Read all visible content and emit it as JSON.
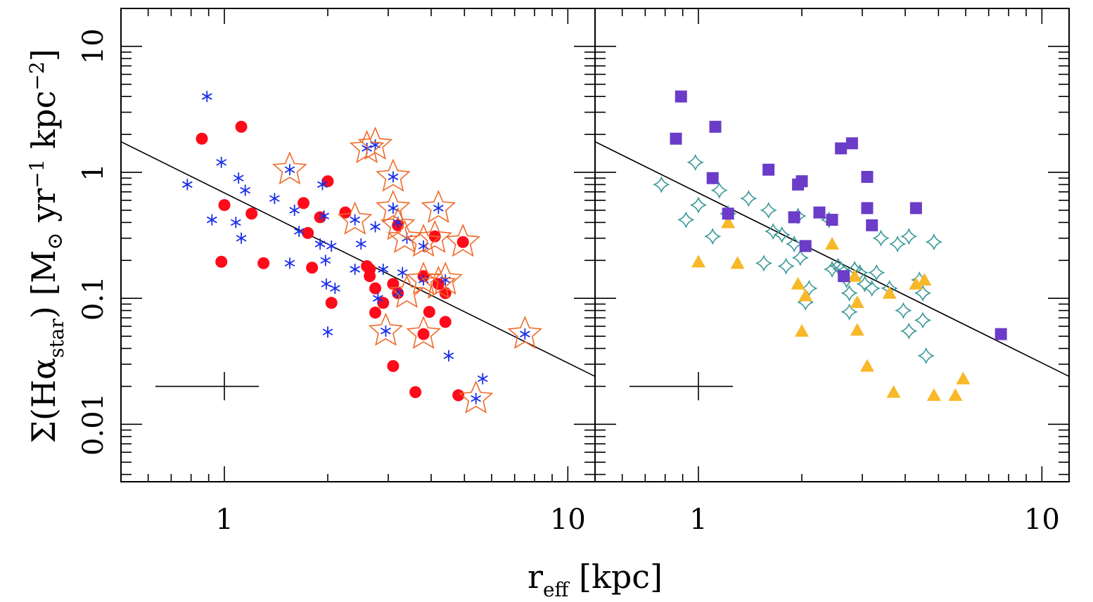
{
  "chart_data": {
    "type": "scatter",
    "xscale": "log",
    "yscale": "log",
    "xlim": [
      0.5,
      12
    ],
    "ylim": [
      0.0035,
      20
    ],
    "xlabel": {
      "main": "r",
      "sub": "eff",
      "rest": "[kpc]"
    },
    "ylabel": {
      "pre": "Σ(Hα",
      "sub": "star",
      "mid": ") [M",
      "sun": "⊙",
      "rest": " yr",
      "exp1": "−1",
      "mid2": " kpc",
      "exp2": "−2",
      "end": "]"
    },
    "xticks": [
      {
        "value": 1,
        "label": "1"
      },
      {
        "value": 10,
        "label": "10"
      }
    ],
    "yticks": [
      {
        "value": 0.01,
        "label": "0.01"
      },
      {
        "value": 0.1,
        "label": "0.1"
      },
      {
        "value": 1,
        "label": "1"
      },
      {
        "value": 10,
        "label": "10"
      }
    ],
    "fit_line": {
      "x": [
        0.5,
        12
      ],
      "y": [
        1.75,
        0.024
      ]
    },
    "error_bar": {
      "x": 1.0,
      "y": 0.02,
      "x_range": [
        0.63,
        1.26
      ],
      "y_range": [
        0.0155,
        0.026
      ]
    },
    "colors": {
      "left_stars": "#1a2ee8",
      "left_dots": "#ff0a1a",
      "left_rings": "#f06a2a",
      "right_squares": "#6a3cc8",
      "right_triangles": "#f8b828",
      "right_sparkles": "#3a9898",
      "line": "#000000"
    },
    "panels": [
      {
        "name": "left",
        "series": [
          {
            "marker": "asterisk",
            "points": [
              [
                0.89,
                4.0
              ],
              [
                0.78,
                0.8
              ],
              [
                0.98,
                1.2
              ],
              [
                1.1,
                0.9
              ],
              [
                1.15,
                0.72
              ],
              [
                0.92,
                0.42
              ],
              [
                1.08,
                0.4
              ],
              [
                1.4,
                0.62
              ],
              [
                1.12,
                0.3
              ],
              [
                1.55,
                0.19
              ],
              [
                1.6,
                0.5
              ],
              [
                1.65,
                0.34
              ],
              [
                1.9,
                0.27
              ],
              [
                1.93,
                0.8
              ],
              [
                1.95,
                0.45
              ],
              [
                1.98,
                0.13
              ],
              [
                2.05,
                0.26
              ],
              [
                1.97,
                0.2
              ],
              [
                2.1,
                0.12
              ],
              [
                2.0,
                0.054
              ],
              [
                2.4,
                0.42
              ],
              [
                2.5,
                0.27
              ],
              [
                2.4,
                0.17
              ],
              [
                2.6,
                1.55
              ],
              [
                2.75,
                1.65
              ],
              [
                2.75,
                0.37
              ],
              [
                2.8,
                0.1
              ],
              [
                2.9,
                0.17
              ],
              [
                3.1,
                0.92
              ],
              [
                3.1,
                0.52
              ],
              [
                3.2,
                0.4
              ],
              [
                3.3,
                0.16
              ],
              [
                3.4,
                0.3
              ],
              [
                3.8,
                0.26
              ],
              [
                3.8,
                0.14
              ],
              [
                4.2,
                0.52
              ],
              [
                4.4,
                0.14
              ],
              [
                4.5,
                0.035
              ],
              [
                5.4,
                0.016
              ],
              [
                5.65,
                0.023
              ],
              [
                7.5,
                0.052
              ],
              [
                2.95,
                0.055
              ],
              [
                1.55,
                1.05
              ],
              [
                3.2,
                0.11
              ]
            ]
          },
          {
            "marker": "dot",
            "points": [
              [
                0.86,
                1.85
              ],
              [
                1.12,
                2.3
              ],
              [
                1.0,
                0.55
              ],
              [
                1.2,
                0.47
              ],
              [
                0.98,
                0.195
              ],
              [
                1.3,
                0.19
              ],
              [
                1.7,
                0.57
              ],
              [
                1.75,
                0.33
              ],
              [
                1.8,
                0.175
              ],
              [
                1.9,
                0.44
              ],
              [
                2.0,
                0.85
              ],
              [
                2.05,
                0.092
              ],
              [
                2.25,
                0.48
              ],
              [
                2.6,
                0.18
              ],
              [
                2.65,
                0.17
              ],
              [
                2.65,
                0.15
              ],
              [
                2.75,
                0.12
              ],
              [
                2.75,
                0.077
              ],
              [
                2.9,
                0.092
              ],
              [
                3.1,
                0.13
              ],
              [
                3.2,
                0.11
              ],
              [
                3.2,
                0.38
              ],
              [
                3.1,
                0.029
              ],
              [
                3.6,
                0.018
              ],
              [
                3.8,
                0.15
              ],
              [
                3.8,
                0.052
              ],
              [
                3.95,
                0.078
              ],
              [
                4.1,
                0.31
              ],
              [
                4.2,
                0.13
              ],
              [
                4.4,
                0.11
              ],
              [
                4.4,
                0.065
              ],
              [
                4.8,
                0.017
              ],
              [
                4.95,
                0.28
              ]
            ]
          },
          {
            "marker": "ring-star",
            "points": [
              [
                1.55,
                1.05
              ],
              [
                2.4,
                0.42
              ],
              [
                2.6,
                1.55
              ],
              [
                2.75,
                1.65
              ],
              [
                3.1,
                0.92
              ],
              [
                3.1,
                0.52
              ],
              [
                3.2,
                0.38
              ],
              [
                3.35,
                0.3
              ],
              [
                2.95,
                0.055
              ],
              [
                3.4,
                0.11
              ],
              [
                3.8,
                0.28
              ],
              [
                3.8,
                0.14
              ],
              [
                3.8,
                0.052
              ],
              [
                4.1,
                0.3
              ],
              [
                4.2,
                0.52
              ],
              [
                4.2,
                0.13
              ],
              [
                4.4,
                0.14
              ],
              [
                4.95,
                0.28
              ],
              [
                5.4,
                0.016
              ],
              [
                7.5,
                0.052
              ]
            ]
          }
        ]
      },
      {
        "name": "right",
        "series": [
          {
            "marker": "square",
            "points": [
              [
                0.89,
                4.0
              ],
              [
                0.86,
                1.85
              ],
              [
                1.12,
                2.3
              ],
              [
                1.1,
                0.9
              ],
              [
                1.6,
                1.05
              ],
              [
                1.95,
                0.8
              ],
              [
                2.0,
                0.85
              ],
              [
                1.9,
                0.44
              ],
              [
                2.05,
                0.26
              ],
              [
                2.25,
                0.48
              ],
              [
                2.45,
                0.42
              ],
              [
                2.6,
                1.55
              ],
              [
                2.8,
                1.7
              ],
              [
                3.1,
                0.92
              ],
              [
                3.1,
                0.52
              ],
              [
                3.2,
                0.38
              ],
              [
                4.3,
                0.52
              ],
              [
                7.6,
                0.052
              ],
              [
                1.22,
                0.47
              ],
              [
                2.65,
                0.15
              ]
            ]
          },
          {
            "marker": "triangle",
            "points": [
              [
                1.22,
                0.4
              ],
              [
                1.0,
                0.195
              ],
              [
                1.3,
                0.19
              ],
              [
                1.95,
                0.13
              ],
              [
                2.05,
                0.105
              ],
              [
                2.0,
                0.055
              ],
              [
                2.45,
                0.27
              ],
              [
                2.85,
                0.15
              ],
              [
                2.9,
                0.093
              ],
              [
                2.9,
                0.056
              ],
              [
                3.1,
                0.029
              ],
              [
                3.6,
                0.11
              ],
              [
                3.7,
                0.018
              ],
              [
                4.3,
                0.13
              ],
              [
                4.55,
                0.14
              ],
              [
                4.85,
                0.017
              ],
              [
                5.6,
                0.017
              ],
              [
                5.9,
                0.023
              ]
            ]
          },
          {
            "marker": "sparkle",
            "points": [
              [
                0.78,
                0.8
              ],
              [
                0.98,
                1.2
              ],
              [
                1.0,
                0.55
              ],
              [
                0.92,
                0.42
              ],
              [
                1.15,
                0.72
              ],
              [
                1.1,
                0.31
              ],
              [
                1.22,
                0.47
              ],
              [
                1.4,
                0.62
              ],
              [
                1.55,
                0.19
              ],
              [
                1.6,
                0.5
              ],
              [
                1.65,
                0.34
              ],
              [
                1.75,
                0.32
              ],
              [
                1.8,
                0.18
              ],
              [
                1.9,
                0.27
              ],
              [
                1.95,
                0.45
              ],
              [
                1.98,
                0.21
              ],
              [
                2.05,
                0.093
              ],
              [
                2.1,
                0.12
              ],
              [
                2.4,
                0.42
              ],
              [
                2.45,
                0.17
              ],
              [
                2.55,
                0.18
              ],
              [
                2.6,
                0.17
              ],
              [
                2.7,
                0.14
              ],
              [
                2.75,
                0.11
              ],
              [
                2.75,
                0.078
              ],
              [
                2.85,
                0.17
              ],
              [
                2.95,
                0.16
              ],
              [
                3.05,
                0.13
              ],
              [
                3.2,
                0.12
              ],
              [
                3.3,
                0.16
              ],
              [
                3.4,
                0.3
              ],
              [
                3.6,
                0.12
              ],
              [
                3.8,
                0.27
              ],
              [
                3.95,
                0.08
              ],
              [
                4.1,
                0.31
              ],
              [
                4.1,
                0.055
              ],
              [
                4.4,
                0.14
              ],
              [
                4.5,
                0.067
              ],
              [
                4.5,
                0.11
              ],
              [
                4.6,
                0.035
              ],
              [
                4.85,
                0.28
              ]
            ]
          }
        ]
      }
    ]
  }
}
